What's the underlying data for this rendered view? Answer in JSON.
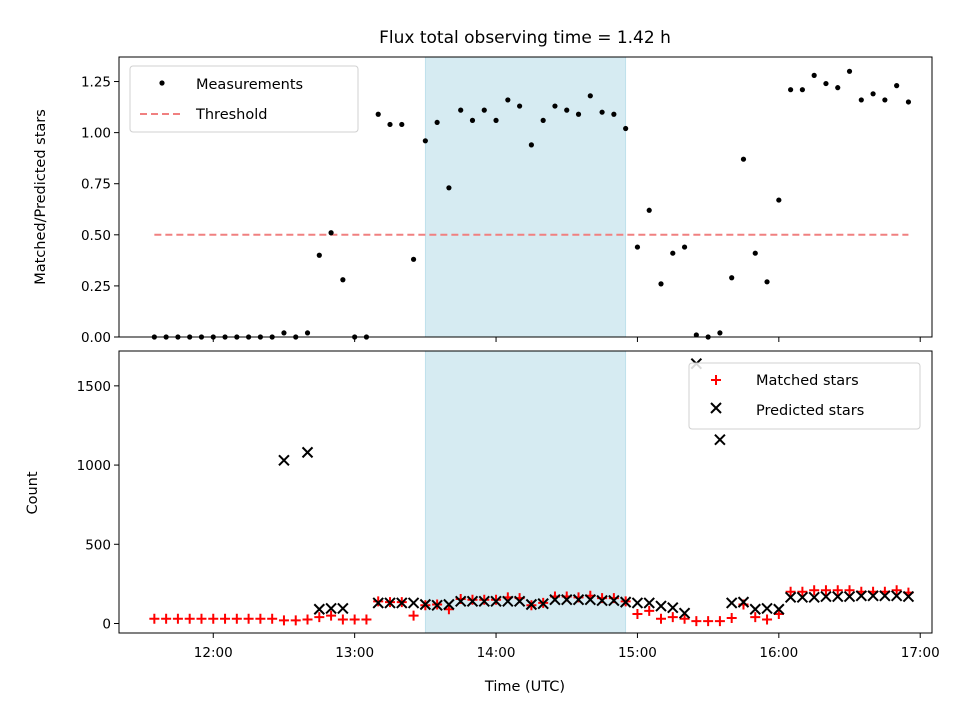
{
  "title": "Flux total observing time = 1.42 h",
  "colors": {
    "measurement": "#000000",
    "threshold": "#f08080",
    "matched": "#ff0000",
    "predicted": "#000000",
    "shade": "#add8e6"
  },
  "chart_data": [
    {
      "type": "scatter",
      "ylabel": "Matched/Predicted stars",
      "xlim": [
        "11:20",
        "17:05"
      ],
      "ylim": [
        0,
        1.37
      ],
      "yticks": [
        "0.00",
        "0.25",
        "0.50",
        "0.75",
        "1.00",
        "1.25"
      ],
      "shaded_interval": [
        "13:30",
        "14:55"
      ],
      "legend": {
        "placement": "top-left",
        "entries": [
          "Measurements",
          "Threshold"
        ]
      },
      "threshold": {
        "name": "Threshold",
        "value": 0.5,
        "x_range": [
          "11:35",
          "16:55"
        ]
      },
      "series": [
        {
          "name": "Measurements",
          "points": [
            [
              "11:35",
              0.0
            ],
            [
              "11:40",
              0.0
            ],
            [
              "11:45",
              0.0
            ],
            [
              "11:50",
              0.0
            ],
            [
              "11:55",
              0.0
            ],
            [
              "12:00",
              0.0
            ],
            [
              "12:05",
              0.0
            ],
            [
              "12:10",
              0.0
            ],
            [
              "12:15",
              0.0
            ],
            [
              "12:20",
              0.0
            ],
            [
              "12:25",
              0.0
            ],
            [
              "12:30",
              0.02
            ],
            [
              "12:35",
              0.0
            ],
            [
              "12:40",
              0.02
            ],
            [
              "12:45",
              0.4
            ],
            [
              "12:50",
              0.51
            ],
            [
              "12:55",
              0.28
            ],
            [
              "13:00",
              0.0
            ],
            [
              "13:05",
              0.0
            ],
            [
              "13:10",
              1.09
            ],
            [
              "13:15",
              1.04
            ],
            [
              "13:20",
              1.04
            ],
            [
              "13:25",
              0.38
            ],
            [
              "13:30",
              0.96
            ],
            [
              "13:35",
              1.05
            ],
            [
              "13:40",
              0.73
            ],
            [
              "13:45",
              1.11
            ],
            [
              "13:50",
              1.06
            ],
            [
              "13:55",
              1.11
            ],
            [
              "14:00",
              1.06
            ],
            [
              "14:05",
              1.16
            ],
            [
              "14:10",
              1.13
            ],
            [
              "14:15",
              0.94
            ],
            [
              "14:20",
              1.06
            ],
            [
              "14:25",
              1.13
            ],
            [
              "14:30",
              1.11
            ],
            [
              "14:35",
              1.09
            ],
            [
              "14:40",
              1.18
            ],
            [
              "14:45",
              1.1
            ],
            [
              "14:50",
              1.09
            ],
            [
              "14:55",
              1.02
            ],
            [
              "15:00",
              0.44
            ],
            [
              "15:05",
              0.62
            ],
            [
              "15:10",
              0.26
            ],
            [
              "15:15",
              0.41
            ],
            [
              "15:20",
              0.44
            ],
            [
              "15:25",
              0.01
            ],
            [
              "15:30",
              0.0
            ],
            [
              "15:35",
              0.02
            ],
            [
              "15:40",
              0.29
            ],
            [
              "15:45",
              0.87
            ],
            [
              "15:50",
              0.41
            ],
            [
              "15:55",
              0.27
            ],
            [
              "16:00",
              0.67
            ],
            [
              "16:05",
              1.21
            ],
            [
              "16:10",
              1.21
            ],
            [
              "16:15",
              1.28
            ],
            [
              "16:20",
              1.24
            ],
            [
              "16:25",
              1.22
            ],
            [
              "16:30",
              1.3
            ],
            [
              "16:35",
              1.16
            ],
            [
              "16:40",
              1.19
            ],
            [
              "16:45",
              1.16
            ],
            [
              "16:50",
              1.23
            ],
            [
              "16:55",
              1.15
            ]
          ]
        }
      ]
    },
    {
      "type": "scatter",
      "xlabel": "Time (UTC)",
      "ylabel": "Count",
      "xlim": [
        "11:20",
        "17:05"
      ],
      "ylim": [
        -60,
        1720
      ],
      "yticks": [
        "0",
        "500",
        "1000",
        "1500"
      ],
      "xticks": [
        "12:00",
        "13:00",
        "14:00",
        "15:00",
        "16:00",
        "17:00"
      ],
      "shaded_interval": [
        "13:30",
        "14:55"
      ],
      "legend": {
        "placement": "top-right",
        "entries": [
          "Matched stars",
          "Predicted stars"
        ]
      },
      "series": [
        {
          "name": "Matched stars",
          "points": [
            [
              "11:35",
              30
            ],
            [
              "11:40",
              30
            ],
            [
              "11:45",
              30
            ],
            [
              "11:50",
              30
            ],
            [
              "11:55",
              30
            ],
            [
              "12:00",
              30
            ],
            [
              "12:05",
              30
            ],
            [
              "12:10",
              30
            ],
            [
              "12:15",
              30
            ],
            [
              "12:20",
              30
            ],
            [
              "12:25",
              30
            ],
            [
              "12:30",
              20
            ],
            [
              "12:35",
              20
            ],
            [
              "12:40",
              25
            ],
            [
              "12:45",
              40
            ],
            [
              "12:50",
              50
            ],
            [
              "12:55",
              25
            ],
            [
              "13:00",
              25
            ],
            [
              "13:05",
              25
            ],
            [
              "13:10",
              140
            ],
            [
              "13:15",
              135
            ],
            [
              "13:20",
              135
            ],
            [
              "13:25",
              50
            ],
            [
              "13:30",
              115
            ],
            [
              "13:35",
              120
            ],
            [
              "13:40",
              90
            ],
            [
              "13:45",
              155
            ],
            [
              "13:50",
              150
            ],
            [
              "13:55",
              150
            ],
            [
              "14:00",
              150
            ],
            [
              "14:05",
              165
            ],
            [
              "14:10",
              160
            ],
            [
              "14:15",
              115
            ],
            [
              "14:20",
              130
            ],
            [
              "14:25",
              170
            ],
            [
              "14:30",
              170
            ],
            [
              "14:35",
              165
            ],
            [
              "14:40",
              175
            ],
            [
              "14:45",
              160
            ],
            [
              "14:50",
              160
            ],
            [
              "14:55",
              140
            ],
            [
              "15:00",
              60
            ],
            [
              "15:05",
              80
            ],
            [
              "15:10",
              30
            ],
            [
              "15:15",
              40
            ],
            [
              "15:20",
              30
            ],
            [
              "15:25",
              15
            ],
            [
              "15:30",
              15
            ],
            [
              "15:35",
              15
            ],
            [
              "15:40",
              35
            ],
            [
              "15:45",
              120
            ],
            [
              "15:50",
              40
            ],
            [
              "15:55",
              25
            ],
            [
              "16:00",
              60
            ],
            [
              "16:05",
              200
            ],
            [
              "16:10",
              200
            ],
            [
              "16:15",
              210
            ],
            [
              "16:20",
              210
            ],
            [
              "16:25",
              210
            ],
            [
              "16:30",
              210
            ],
            [
              "16:35",
              200
            ],
            [
              "16:40",
              200
            ],
            [
              "16:45",
              200
            ],
            [
              "16:50",
              210
            ],
            [
              "16:55",
              195
            ]
          ]
        },
        {
          "name": "Predicted stars",
          "points": [
            [
              "12:30",
              1030
            ],
            [
              "12:40",
              1080
            ],
            [
              "12:45",
              90
            ],
            [
              "12:50",
              95
            ],
            [
              "12:55",
              95
            ],
            [
              "13:10",
              130
            ],
            [
              "13:15",
              130
            ],
            [
              "13:20",
              130
            ],
            [
              "13:25",
              130
            ],
            [
              "13:30",
              120
            ],
            [
              "13:35",
              115
            ],
            [
              "13:40",
              120
            ],
            [
              "13:45",
              140
            ],
            [
              "13:50",
              140
            ],
            [
              "13:55",
              140
            ],
            [
              "14:00",
              140
            ],
            [
              "14:05",
              140
            ],
            [
              "14:10",
              140
            ],
            [
              "14:15",
              120
            ],
            [
              "14:20",
              125
            ],
            [
              "14:25",
              150
            ],
            [
              "14:30",
              150
            ],
            [
              "14:35",
              150
            ],
            [
              "14:40",
              150
            ],
            [
              "14:45",
              145
            ],
            [
              "14:50",
              145
            ],
            [
              "14:55",
              135
            ],
            [
              "15:00",
              130
            ],
            [
              "15:05",
              130
            ],
            [
              "15:10",
              110
            ],
            [
              "15:15",
              100
            ],
            [
              "15:20",
              65
            ],
            [
              "15:25",
              1640
            ],
            [
              "15:35",
              1160
            ],
            [
              "15:40",
              130
            ],
            [
              "15:45",
              135
            ],
            [
              "15:50",
              90
            ],
            [
              "15:55",
              95
            ],
            [
              "16:00",
              90
            ],
            [
              "16:05",
              165
            ],
            [
              "16:10",
              165
            ],
            [
              "16:15",
              165
            ],
            [
              "16:20",
              170
            ],
            [
              "16:25",
              170
            ],
            [
              "16:30",
              170
            ],
            [
              "16:35",
              175
            ],
            [
              "16:40",
              175
            ],
            [
              "16:45",
              175
            ],
            [
              "16:50",
              175
            ],
            [
              "16:55",
              170
            ]
          ]
        }
      ]
    }
  ]
}
